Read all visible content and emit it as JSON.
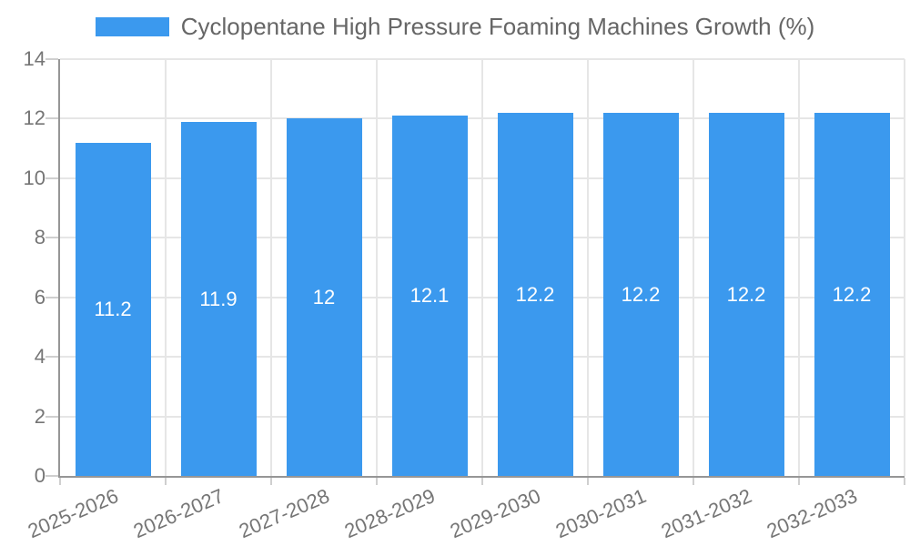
{
  "chart_data": {
    "type": "bar",
    "title": "Cyclopentane High Pressure Foaming Machines Growth (%)",
    "categories": [
      "2025-2026",
      "2026-2027",
      "2027-2028",
      "2028-2029",
      "2029-2030",
      "2030-2031",
      "2031-2032",
      "2032-2033"
    ],
    "values": [
      11.2,
      11.9,
      12,
      12.1,
      12.2,
      12.2,
      12.2,
      12.2
    ],
    "value_labels": [
      "11.2",
      "11.9",
      "12",
      "12.1",
      "12.2",
      "12.2",
      "12.2",
      "12.2"
    ],
    "xlabel": "",
    "ylabel": "",
    "ylim": [
      0,
      14
    ],
    "yticks": [
      0,
      2,
      4,
      6,
      8,
      10,
      12,
      14
    ],
    "grid": true,
    "legend_position": "top",
    "colors": {
      "bar": "#3b99ee",
      "value_label": "#ffffff",
      "grid": "#e6e6e6",
      "axis": "#969696",
      "tick_mark": "#cfcfcf",
      "tick_text": "#757575",
      "legend_text": "#666666",
      "background": "#ffffff"
    }
  }
}
